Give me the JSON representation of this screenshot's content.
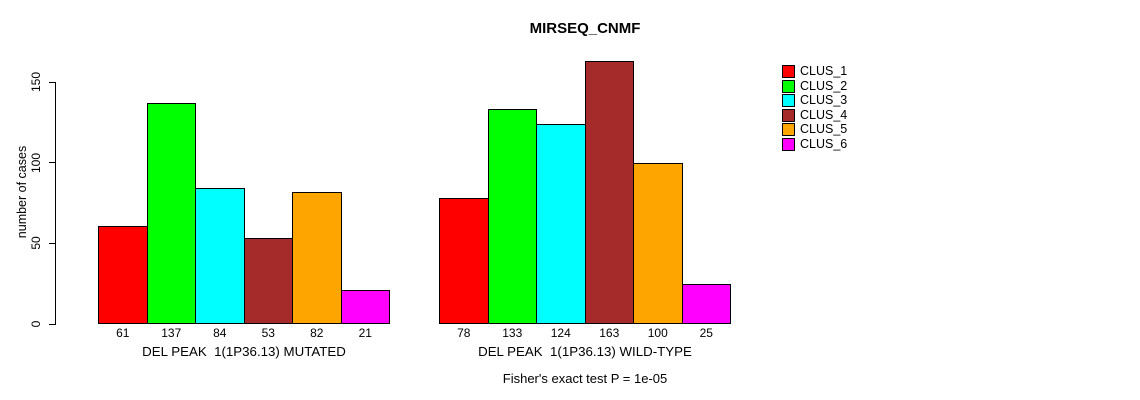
{
  "title": "MIRSEQ_CNMF",
  "y_axis": {
    "label": "number of cases",
    "ticks": [
      "0",
      "50",
      "100",
      "150"
    ]
  },
  "footer": "Fisher's exact test P = 1e-05",
  "legend": {
    "entries": [
      {
        "label": "CLUS_1",
        "color": "#FF0000"
      },
      {
        "label": "CLUS_2",
        "color": "#00FF00"
      },
      {
        "label": "CLUS_3",
        "color": "#00FFFF"
      },
      {
        "label": "CLUS_4",
        "color": "#A52A2A"
      },
      {
        "label": "CLUS_5",
        "color": "#FFA500"
      },
      {
        "label": "CLUS_6",
        "color": "#FF00FF"
      }
    ]
  },
  "chart_data": {
    "type": "bar",
    "title": "MIRSEQ_CNMF",
    "xlabel": "",
    "ylabel": "number of cases",
    "ylim": [
      0,
      163
    ],
    "yticks": [
      0,
      50,
      100,
      150
    ],
    "grid": false,
    "legend_position": "right-outside",
    "bar_value_labels": true,
    "group_labels": [
      "DEL PEAK  1(1P36.13) MUTATED",
      "DEL PEAK  1(1P36.13) WILD-TYPE"
    ],
    "series": [
      {
        "name": "CLUS_1",
        "color": "#FF0000",
        "values": [
          61,
          78
        ]
      },
      {
        "name": "CLUS_2",
        "color": "#00FF00",
        "values": [
          137,
          133
        ]
      },
      {
        "name": "CLUS_3",
        "color": "#00FFFF",
        "values": [
          84,
          124
        ]
      },
      {
        "name": "CLUS_4",
        "color": "#A52A2A",
        "values": [
          53,
          163
        ]
      },
      {
        "name": "CLUS_5",
        "color": "#FFA500",
        "values": [
          82,
          100
        ]
      },
      {
        "name": "CLUS_6",
        "color": "#FF00FF",
        "values": [
          21,
          25
        ]
      }
    ],
    "annotation": "Fisher's exact test P = 1e-05"
  }
}
